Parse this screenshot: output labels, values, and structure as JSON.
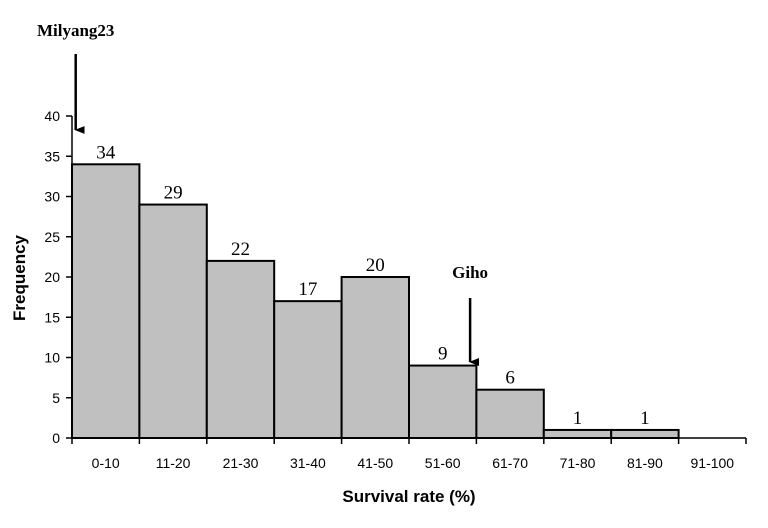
{
  "chart_data": {
    "type": "bar",
    "categories": [
      "0-10",
      "11-20",
      "21-30",
      "31-40",
      "41-50",
      "51-60",
      "61-70",
      "71-80",
      "81-90",
      "91-100"
    ],
    "values": [
      34,
      29,
      22,
      17,
      20,
      9,
      6,
      1,
      1,
      0
    ],
    "data_labels": [
      "34",
      "29",
      "22",
      "17",
      "20",
      "9",
      "6",
      "1",
      "1",
      ""
    ],
    "title": "",
    "xlabel": "Survival rate (%)",
    "ylabel": "Frequency",
    "ylim": [
      0,
      40
    ],
    "yticks": [
      0,
      5,
      10,
      15,
      20,
      25,
      30,
      35,
      40
    ],
    "bar_color": "#c0c0c0",
    "bar_edge_color": "#000000",
    "grid": false,
    "legend": "none",
    "annotations": [
      {
        "text": "Milyang23",
        "category": "0-10"
      },
      {
        "text": "Giho",
        "category": "61-70"
      }
    ]
  }
}
